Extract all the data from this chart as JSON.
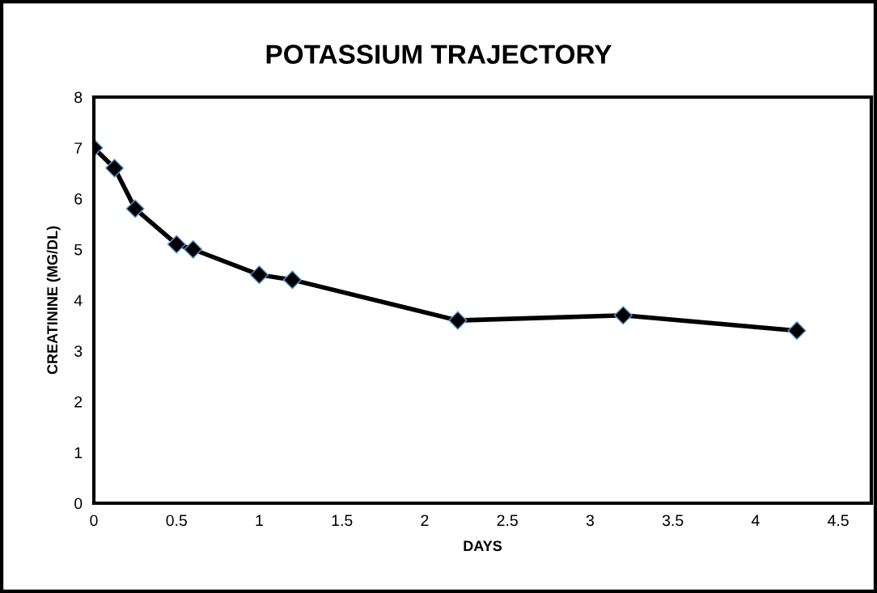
{
  "chart_data": {
    "type": "line",
    "title": "POTASSIUM TRAJECTORY",
    "xlabel": "DAYS",
    "ylabel": "CREATININE (MG/DL)",
    "x": [
      0,
      0.125,
      0.25,
      0.5,
      0.6,
      1,
      1.2,
      2.2,
      3.2,
      4.25
    ],
    "series": [
      {
        "color": "#000000",
        "values": [
          7,
          6.6,
          5.8,
          5.1,
          5.0,
          4.5,
          4.4,
          3.6,
          3.7,
          3.4
        ]
      }
    ],
    "xlim": [
      0,
      4.7
    ],
    "xticks": [
      0,
      0.5,
      1,
      1.5,
      2,
      2.5,
      3,
      3.5,
      4,
      4.5
    ],
    "ylim": [
      0,
      8
    ],
    "yticks": [
      0,
      1,
      2,
      3,
      4,
      5,
      6,
      7,
      8
    ],
    "grid": false,
    "marker": "diamond",
    "line_style": "solid"
  }
}
